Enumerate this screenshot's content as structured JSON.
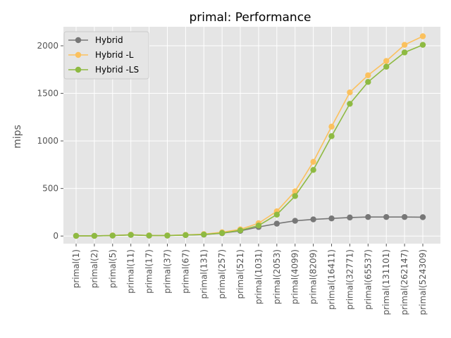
{
  "chart_data": {
    "type": "line",
    "title": "primal: Performance",
    "xlabel": "",
    "ylabel": "mips",
    "ylim": [
      -80,
      2200
    ],
    "yticks": [
      0,
      500,
      1000,
      1500,
      2000
    ],
    "grid": true,
    "legend_position": "top-left",
    "categories": [
      "primal(1)",
      "primal(2)",
      "primal(5)",
      "primal(11)",
      "primal(17)",
      "primal(37)",
      "primal(67)",
      "primal(131)",
      "primal(257)",
      "primal(521)",
      "primal(1031)",
      "primal(2053)",
      "primal(4099)",
      "primal(8209)",
      "primal(16411)",
      "primal(32771)",
      "primal(65537)",
      "primal(131101)",
      "primal(262147)",
      "primal(524309)"
    ],
    "series": [
      {
        "name": "Hybrid",
        "color": "#777777",
        "values": [
          2,
          2,
          5,
          12,
          5,
          5,
          10,
          15,
          30,
          55,
          95,
          130,
          160,
          175,
          185,
          195,
          200,
          200,
          200,
          198
        ]
      },
      {
        "name": "Hybrid -L",
        "color": "#FBC15E",
        "values": [
          2,
          2,
          6,
          14,
          6,
          6,
          12,
          20,
          40,
          70,
          135,
          260,
          470,
          780,
          1150,
          1510,
          1690,
          1840,
          2010,
          2100
        ]
      },
      {
        "name": "Hybrid -LS",
        "color": "#8EBA42",
        "values": [
          2,
          2,
          5,
          12,
          5,
          5,
          10,
          16,
          32,
          60,
          110,
          225,
          420,
          695,
          1050,
          1390,
          1620,
          1780,
          1930,
          2010
        ]
      }
    ]
  }
}
